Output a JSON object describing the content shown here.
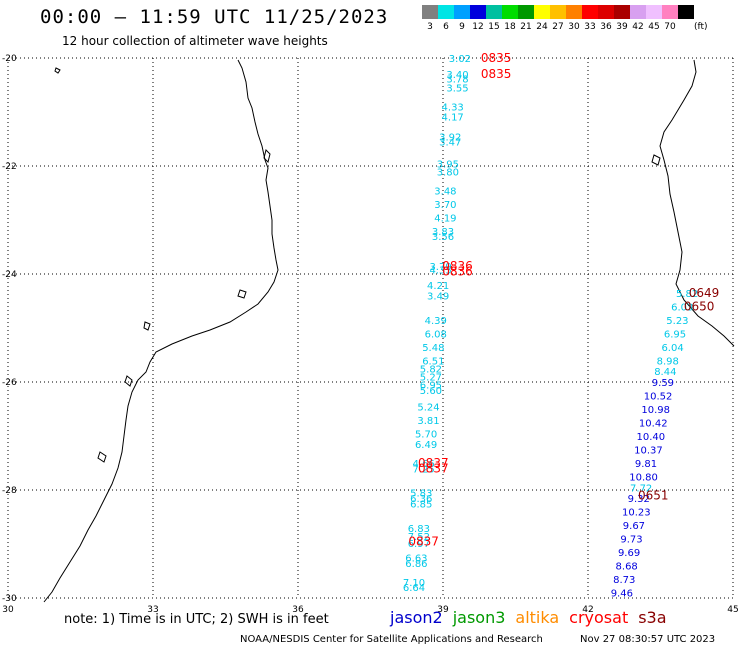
{
  "header": {
    "title": "00:00 – 11:59 UTC 11/25/2023",
    "subtitle": "12 hour collection of altimeter wave heights"
  },
  "colorbar": {
    "unit": "(ft)",
    "cells": [
      {
        "color": "#808080",
        "label": "3"
      },
      {
        "color": "#00e5e5",
        "label": "6"
      },
      {
        "color": "#00a0ff",
        "label": "9"
      },
      {
        "color": "#0000dd",
        "label": "12"
      },
      {
        "color": "#00c0a0",
        "label": "15"
      },
      {
        "color": "#00dd00",
        "label": "18"
      },
      {
        "color": "#009900",
        "label": "21"
      },
      {
        "color": "#ffff00",
        "label": "24"
      },
      {
        "color": "#ffc000",
        "label": "27"
      },
      {
        "color": "#ff8000",
        "label": "30"
      },
      {
        "color": "#ff0000",
        "label": "33"
      },
      {
        "color": "#dd0000",
        "label": "36"
      },
      {
        "color": "#aa0000",
        "label": "39"
      },
      {
        "color": "#d8a0f0",
        "label": "42"
      },
      {
        "color": "#f0c0ff",
        "label": "45"
      },
      {
        "color": "#ff80c0",
        "label": "70"
      },
      {
        "color": "#000000",
        "label": ""
      }
    ]
  },
  "axes": {
    "lon_ticks": [
      "30",
      "33",
      "36",
      "39",
      "42",
      "45"
    ],
    "lat_ticks": [
      "-20",
      "-22",
      "-24",
      "-26",
      "-28",
      "-30"
    ]
  },
  "passes": [
    {
      "satellite": "cryosat",
      "color": "#ff0000",
      "lon": 40.1,
      "lat": -20.0,
      "label": "0835"
    },
    {
      "satellite": "cryosat",
      "color": "#ff0000",
      "lon": 40.1,
      "lat": -20.3,
      "label": "0835"
    },
    {
      "satellite": "cryosat",
      "color": "#ff0000",
      "lon": 39.3,
      "lat": -23.85,
      "label": "0836"
    },
    {
      "satellite": "cryosat",
      "color": "#ff0000",
      "lon": 39.3,
      "lat": -23.95,
      "label": "0836"
    },
    {
      "satellite": "cryosat",
      "color": "#ff0000",
      "lon": 38.8,
      "lat": -27.5,
      "label": "0837"
    },
    {
      "satellite": "cryosat",
      "color": "#ff0000",
      "lon": 38.8,
      "lat": -27.6,
      "label": "0837"
    },
    {
      "satellite": "cryosat",
      "color": "#ff0000",
      "lon": 38.6,
      "lat": -28.95,
      "label": "0837"
    },
    {
      "satellite": "s3a",
      "color": "#880000",
      "lon": 44.4,
      "lat": -24.35,
      "label": "0649"
    },
    {
      "satellite": "s3a",
      "color": "#880000",
      "lon": 44.3,
      "lat": -24.6,
      "label": "0650"
    },
    {
      "satellite": "s3a",
      "color": "#880000",
      "lon": 43.35,
      "lat": -28.1,
      "label": "0651"
    }
  ],
  "wave_heights": [
    {
      "sat": "cryosat",
      "color": "#00c8e8",
      "lon": 39.35,
      "lat": -20.0,
      "value": "3.02"
    },
    {
      "sat": "cryosat",
      "color": "#00c8e8",
      "lon": 39.3,
      "lat": -20.3,
      "value": "3.40"
    },
    {
      "sat": "cryosat",
      "color": "#00c8e8",
      "lon": 39.3,
      "lat": -20.38,
      "value": "3.78"
    },
    {
      "sat": "cryosat",
      "color": "#00c8e8",
      "lon": 39.3,
      "lat": -20.55,
      "value": "3.55"
    },
    {
      "sat": "cryosat",
      "color": "#00c8e8",
      "lon": 39.2,
      "lat": -20.9,
      "value": "4.33"
    },
    {
      "sat": "cryosat",
      "color": "#00c8e8",
      "lon": 39.2,
      "lat": -21.08,
      "value": "4.17"
    },
    {
      "sat": "cryosat",
      "color": "#00c8e8",
      "lon": 39.15,
      "lat": -21.45,
      "value": "3.92"
    },
    {
      "sat": "cryosat",
      "color": "#00c8e8",
      "lon": 39.15,
      "lat": -21.55,
      "value": "3.47"
    },
    {
      "sat": "cryosat",
      "color": "#00c8e8",
      "lon": 39.1,
      "lat": -21.95,
      "value": "3.95"
    },
    {
      "sat": "cryosat",
      "color": "#00c8e8",
      "lon": 39.1,
      "lat": -22.1,
      "value": "3.80"
    },
    {
      "sat": "cryosat",
      "color": "#00c8e8",
      "lon": 39.05,
      "lat": -22.45,
      "value": "3.48"
    },
    {
      "sat": "cryosat",
      "color": "#00c8e8",
      "lon": 39.05,
      "lat": -22.7,
      "value": "3.70"
    },
    {
      "sat": "cryosat",
      "color": "#00c8e8",
      "lon": 39.05,
      "lat": -22.95,
      "value": "4.19"
    },
    {
      "sat": "cryosat",
      "color": "#00c8e8",
      "lon": 39.0,
      "lat": -23.2,
      "value": "3.83"
    },
    {
      "sat": "cryosat",
      "color": "#00c8e8",
      "lon": 39.0,
      "lat": -23.3,
      "value": "3.56"
    },
    {
      "sat": "cryosat",
      "color": "#00c8e8",
      "lon": 38.95,
      "lat": -23.85,
      "value": "3.79"
    },
    {
      "sat": "cryosat",
      "color": "#00c8e8",
      "lon": 38.95,
      "lat": -23.92,
      "value": "4.35"
    },
    {
      "sat": "cryosat",
      "color": "#00c8e8",
      "lon": 38.9,
      "lat": -24.2,
      "value": "4.21"
    },
    {
      "sat": "cryosat",
      "color": "#00c8e8",
      "lon": 38.9,
      "lat": -24.4,
      "value": "3.49"
    },
    {
      "sat": "cryosat",
      "color": "#00c8e8",
      "lon": 38.85,
      "lat": -24.85,
      "value": "4.39"
    },
    {
      "sat": "cryosat",
      "color": "#00c8e8",
      "lon": 38.85,
      "lat": -25.1,
      "value": "6.08"
    },
    {
      "sat": "cryosat",
      "color": "#00c8e8",
      "lon": 38.8,
      "lat": -25.35,
      "value": "5.48"
    },
    {
      "sat": "cryosat",
      "color": "#00c8e8",
      "lon": 38.8,
      "lat": -25.6,
      "value": "6.51"
    },
    {
      "sat": "cryosat",
      "color": "#00c8e8",
      "lon": 38.75,
      "lat": -25.75,
      "value": "5.82"
    },
    {
      "sat": "cryosat",
      "color": "#00c8e8",
      "lon": 38.75,
      "lat": -25.9,
      "value": "5.27"
    },
    {
      "sat": "cryosat",
      "color": "#00c8e8",
      "lon": 38.75,
      "lat": -26.05,
      "value": "6.95"
    },
    {
      "sat": "cryosat",
      "color": "#00c8e8",
      "lon": 38.75,
      "lat": -26.15,
      "value": "5.60"
    },
    {
      "sat": "cryosat",
      "color": "#00c8e8",
      "lon": 38.7,
      "lat": -26.45,
      "value": "5.24"
    },
    {
      "sat": "cryosat",
      "color": "#00c8e8",
      "lon": 38.7,
      "lat": -26.7,
      "value": "3.81"
    },
    {
      "sat": "cryosat",
      "color": "#00c8e8",
      "lon": 38.65,
      "lat": -26.95,
      "value": "5.70"
    },
    {
      "sat": "cryosat",
      "color": "#00c8e8",
      "lon": 38.65,
      "lat": -27.15,
      "value": "6.49"
    },
    {
      "sat": "cryosat",
      "color": "#00c8e8",
      "lon": 38.6,
      "lat": -27.5,
      "value": "4.66"
    },
    {
      "sat": "cryosat",
      "color": "#00c8e8",
      "lon": 38.6,
      "lat": -27.6,
      "value": "7.25"
    },
    {
      "sat": "cryosat",
      "color": "#00c8e8",
      "lon": 38.55,
      "lat": -28.05,
      "value": "5.83"
    },
    {
      "sat": "cryosat",
      "color": "#00c8e8",
      "lon": 38.55,
      "lat": -28.15,
      "value": "6.36"
    },
    {
      "sat": "cryosat",
      "color": "#00c8e8",
      "lon": 38.55,
      "lat": -28.25,
      "value": "6.85"
    },
    {
      "sat": "cryosat",
      "color": "#00c8e8",
      "lon": 38.5,
      "lat": -28.7,
      "value": "6.83"
    },
    {
      "sat": "cryosat",
      "color": "#00c8e8",
      "lon": 38.5,
      "lat": -28.85,
      "value": "7.52"
    },
    {
      "sat": "cryosat",
      "color": "#00c8e8",
      "lon": 38.5,
      "lat": -28.98,
      "value": "6.97"
    },
    {
      "sat": "cryosat",
      "color": "#00c8e8",
      "lon": 38.45,
      "lat": -29.25,
      "value": "6.63"
    },
    {
      "sat": "cryosat",
      "color": "#00c8e8",
      "lon": 38.45,
      "lat": -29.35,
      "value": "6.86"
    },
    {
      "sat": "cryosat",
      "color": "#00c8e8",
      "lon": 38.4,
      "lat": -29.7,
      "value": "7.10"
    },
    {
      "sat": "cryosat",
      "color": "#00c8e8",
      "lon": 38.4,
      "lat": -29.8,
      "value": "6.64"
    },
    {
      "sat": "s3a",
      "color": "#00c8e8",
      "lon": 44.05,
      "lat": -24.35,
      "value": "5.82"
    },
    {
      "sat": "s3a",
      "color": "#00c8e8",
      "lon": 43.95,
      "lat": -24.6,
      "value": "6.03"
    },
    {
      "sat": "s3a",
      "color": "#00c8e8",
      "lon": 43.85,
      "lat": -24.85,
      "value": "5.23"
    },
    {
      "sat": "s3a",
      "color": "#00c8e8",
      "lon": 43.8,
      "lat": -25.1,
      "value": "6.95"
    },
    {
      "sat": "s3a",
      "color": "#00c8e8",
      "lon": 43.75,
      "lat": -25.35,
      "value": "6.04"
    },
    {
      "sat": "s3a",
      "color": "#00c8e8",
      "lon": 43.65,
      "lat": -25.6,
      "value": "8.98"
    },
    {
      "sat": "s3a",
      "color": "#00c8e8",
      "lon": 43.6,
      "lat": -25.8,
      "value": "8.44"
    },
    {
      "sat": "s3a",
      "color": "#0000dd",
      "lon": 43.55,
      "lat": -26.0,
      "value": "9.59"
    },
    {
      "sat": "s3a",
      "color": "#0000dd",
      "lon": 43.45,
      "lat": -26.25,
      "value": "10.52"
    },
    {
      "sat": "s3a",
      "color": "#0000dd",
      "lon": 43.4,
      "lat": -26.5,
      "value": "10.98"
    },
    {
      "sat": "s3a",
      "color": "#0000dd",
      "lon": 43.35,
      "lat": -26.75,
      "value": "10.42"
    },
    {
      "sat": "s3a",
      "color": "#0000dd",
      "lon": 43.3,
      "lat": -27.0,
      "value": "10.40"
    },
    {
      "sat": "s3a",
      "color": "#0000dd",
      "lon": 43.25,
      "lat": -27.25,
      "value": "10.37"
    },
    {
      "sat": "s3a",
      "color": "#0000dd",
      "lon": 43.2,
      "lat": -27.5,
      "value": "9.81"
    },
    {
      "sat": "s3a",
      "color": "#0000dd",
      "lon": 43.15,
      "lat": -27.75,
      "value": "10.80"
    },
    {
      "sat": "s3a",
      "color": "#00c8e8",
      "lon": 43.1,
      "lat": -27.95,
      "value": "7.72"
    },
    {
      "sat": "s3a",
      "color": "#0000dd",
      "lon": 43.05,
      "lat": -28.15,
      "value": "9.32"
    },
    {
      "sat": "s3a",
      "color": "#0000dd",
      "lon": 43.0,
      "lat": -28.4,
      "value": "10.23"
    },
    {
      "sat": "s3a",
      "color": "#0000dd",
      "lon": 42.95,
      "lat": -28.65,
      "value": "9.67"
    },
    {
      "sat": "s3a",
      "color": "#0000dd",
      "lon": 42.9,
      "lat": -28.9,
      "value": "9.73"
    },
    {
      "sat": "s3a",
      "color": "#0000dd",
      "lon": 42.85,
      "lat": -29.15,
      "value": "9.69"
    },
    {
      "sat": "s3a",
      "color": "#0000dd",
      "lon": 42.8,
      "lat": -29.4,
      "value": "8.68"
    },
    {
      "sat": "s3a",
      "color": "#0000dd",
      "lon": 42.75,
      "lat": -29.65,
      "value": "8.73"
    },
    {
      "sat": "s3a",
      "color": "#0000dd",
      "lon": 42.7,
      "lat": -29.9,
      "value": "9.46"
    }
  ],
  "note": "note:  1) Time is in UTC;  2) SWH is in feet",
  "legend": [
    {
      "name": "jason2",
      "color": "#0000cc"
    },
    {
      "name": "jason3",
      "color": "#009900"
    },
    {
      "name": "altika",
      "color": "#ff8c00"
    },
    {
      "name": "cryosat",
      "color": "#ff0000"
    },
    {
      "name": "s3a",
      "color": "#880000"
    }
  ],
  "footer": {
    "source": "NOAA/NESDIS Center for Satellite Applications and Research",
    "timestamp": "Nov 27 08:30:57 UTC 2023"
  }
}
